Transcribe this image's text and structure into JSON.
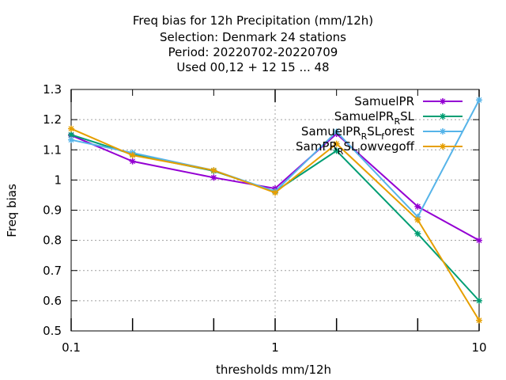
{
  "chart_data": {
    "type": "line",
    "title": [
      "Freq bias  for 12h Precipitation (mm/12h)",
      "Selection: Denmark      24 stations",
      "Period: 20220702-20220709",
      "Used  00,12  + 12 15 ... 48"
    ],
    "xlabel": "thresholds mm/12h",
    "ylabel": "Freq bias",
    "xscale": "log",
    "xlim": [
      0.1,
      10
    ],
    "ylim": [
      0.5,
      1.3
    ],
    "x_ticks": [
      "0.1",
      "1",
      "10"
    ],
    "y_ticks": [
      "0.5",
      "0.6",
      "0.7",
      "0.8",
      "0.9",
      "1",
      "1.1",
      "1.2",
      "1.3"
    ],
    "grid": true,
    "legend_position": "top-right",
    "x": [
      0.1,
      0.2,
      0.5,
      1,
      2,
      5,
      10
    ],
    "series": [
      {
        "name": "SamuelPR",
        "name_parts": [
          {
            "t": "SamuelPR"
          }
        ],
        "color": "#9400d3",
        "values": [
          1.148,
          1.062,
          1.008,
          0.972,
          1.153,
          0.912,
          0.8
        ]
      },
      {
        "name": "SamuelPR_R SL",
        "name_parts": [
          {
            "t": "SamuelPR"
          },
          {
            "t": "R",
            "sub": true
          },
          {
            "t": "SL"
          }
        ],
        "color": "#009e73",
        "values": [
          1.15,
          1.085,
          1.03,
          0.962,
          1.097,
          0.822,
          0.6
        ]
      },
      {
        "name": "SamuelPR_R SL_forest",
        "name_parts": [
          {
            "t": "SamuelPR"
          },
          {
            "t": "R",
            "sub": true
          },
          {
            "t": "SL"
          },
          {
            "t": "f",
            "sub": true
          },
          {
            "t": "orest"
          }
        ],
        "color": "#56b4e9",
        "values": [
          1.133,
          1.09,
          1.032,
          0.962,
          1.16,
          0.878,
          1.265
        ]
      },
      {
        "name": "SamPR_R SL_lowvegoff",
        "name_parts": [
          {
            "t": "SamPR"
          },
          {
            "t": "R",
            "sub": true
          },
          {
            "t": "SL"
          },
          {
            "t": "l",
            "sub": true
          },
          {
            "t": "owvegoff"
          }
        ],
        "color": "#e69f00",
        "values": [
          1.17,
          1.082,
          1.032,
          0.958,
          1.12,
          0.868,
          0.535
        ]
      }
    ]
  }
}
